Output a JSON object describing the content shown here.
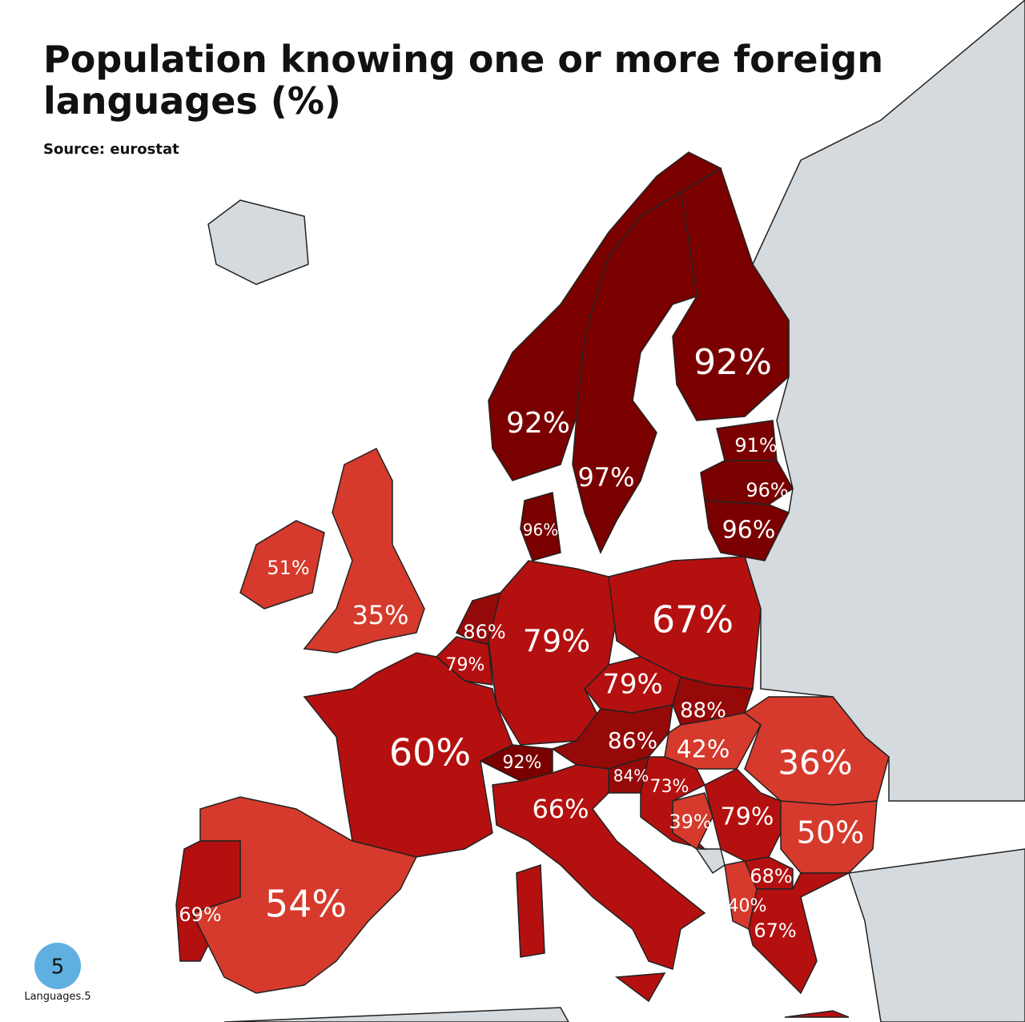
{
  "header": {
    "title_line1": "Population knowing one or more foreign",
    "title_line2": "languages (%)",
    "source": "Source: eurostat"
  },
  "regions": [
    {
      "value": 92,
      "label": "92%"
    },
    {
      "value": 92,
      "label": "92%"
    },
    {
      "value": 97,
      "label": "97%"
    },
    {
      "value": 91,
      "label": "91%"
    },
    {
      "value": 96,
      "label": "96%"
    },
    {
      "value": 96,
      "label": "96%"
    },
    {
      "value": 96,
      "label": "96%"
    },
    {
      "value": 51,
      "label": "51%"
    },
    {
      "value": 35,
      "label": "35%"
    },
    {
      "value": 86,
      "label": "86%"
    },
    {
      "value": 79,
      "label": "79%"
    },
    {
      "value": 79,
      "label": "79%"
    },
    {
      "value": 67,
      "label": "67%"
    },
    {
      "value": 79,
      "label": "79%"
    },
    {
      "value": 88,
      "label": "88%"
    },
    {
      "value": 86,
      "label": "86%"
    },
    {
      "value": 42,
      "label": "42%"
    },
    {
      "value": 36,
      "label": "36%"
    },
    {
      "value": 60,
      "label": "60%"
    },
    {
      "value": 92,
      "label": "92%"
    },
    {
      "value": 84,
      "label": "84%"
    },
    {
      "value": 73,
      "label": "73%"
    },
    {
      "value": 66,
      "label": "66%"
    },
    {
      "value": 39,
      "label": "39%"
    },
    {
      "value": 79,
      "label": "79%"
    },
    {
      "value": 50,
      "label": "50%"
    },
    {
      "value": 68,
      "label": "68%"
    },
    {
      "value": 40,
      "label": "40%"
    },
    {
      "value": 67,
      "label": "67%"
    },
    {
      "value": 54,
      "label": "54%"
    },
    {
      "value": 69,
      "label": "69%"
    }
  ],
  "logo": {
    "digit": "5",
    "name": "Languages.5"
  }
}
